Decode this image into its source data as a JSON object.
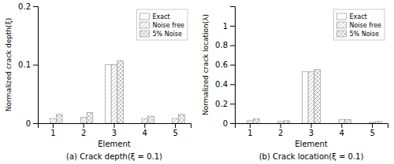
{
  "chart_data": [
    {
      "type": "bar",
      "title": "(a)  Crack depth(ξ = 0.1)",
      "xlabel": "Element",
      "ylabel": "Normalized crack depth(ξ)",
      "categories": [
        "1",
        "2",
        "3",
        "4",
        "5"
      ],
      "series": [
        {
          "name": "Exact",
          "color": "white",
          "values": [
            0.0,
            0.0,
            0.1,
            0.0,
            0.0
          ]
        },
        {
          "name": "Noise free",
          "color": "white",
          "values": [
            0.008,
            0.01,
            0.1,
            0.008,
            0.008
          ]
        },
        {
          "name": "5% Noise",
          "color": "white",
          "values": [
            0.015,
            0.018,
            0.107,
            0.012,
            0.015
          ]
        }
      ],
      "ylim": [
        0,
        0.2
      ],
      "yticks": [
        0.0,
        0.1,
        0.2
      ],
      "grid": false,
      "legend": "upper right"
    },
    {
      "type": "bar",
      "title": "(b)  Crack location(ξ = 0.1)",
      "xlabel": "Element",
      "ylabel": "Normalized crack location(λ)",
      "categories": [
        "1",
        "2",
        "3",
        "4",
        "5"
      ],
      "series": [
        {
          "name": "Exact",
          "color": "white",
          "values": [
            0.0,
            0.0,
            0.53,
            0.0,
            0.0
          ]
        },
        {
          "name": "Noise free",
          "color": "white",
          "values": [
            0.025,
            0.018,
            0.53,
            0.035,
            0.008
          ]
        },
        {
          "name": "5% Noise",
          "color": "white",
          "values": [
            0.045,
            0.025,
            0.55,
            0.038,
            0.018
          ]
        }
      ],
      "ylim": [
        0,
        1.2
      ],
      "yticks": [
        0.0,
        0.2,
        0.4,
        0.6,
        0.8,
        1.0
      ],
      "grid": false,
      "legend": "upper right"
    }
  ]
}
